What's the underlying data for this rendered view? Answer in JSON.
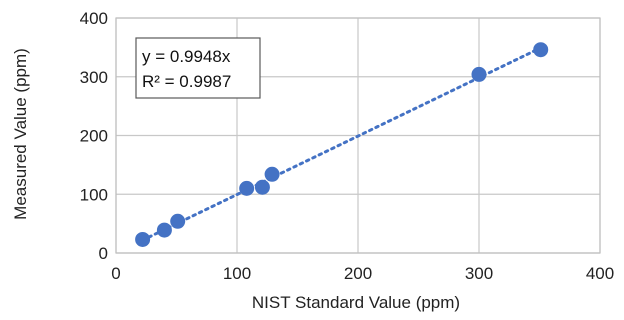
{
  "chart_data": {
    "type": "scatter",
    "xlabel": "NIST Standard Value (ppm)",
    "ylabel": "Measured Value (ppm)",
    "xlim": [
      0,
      400
    ],
    "ylim": [
      0,
      400
    ],
    "xticks": [
      0,
      100,
      200,
      300,
      400
    ],
    "yticks": [
      0,
      100,
      200,
      300,
      400
    ],
    "grid": true,
    "series": [
      {
        "x": [
          22,
          40,
          51,
          108,
          121,
          129,
          300,
          351
        ],
        "y": [
          23,
          39,
          54,
          110,
          112,
          134,
          304,
          346
        ],
        "color": "#4472C4"
      }
    ],
    "trendline": {
      "slope": 0.9948,
      "x_range": [
        22,
        351
      ],
      "style": "dotted",
      "color": "#4472C4"
    },
    "annotation": {
      "equation": "y = 0.9948x",
      "r_squared": "R² = 0.9987"
    }
  }
}
